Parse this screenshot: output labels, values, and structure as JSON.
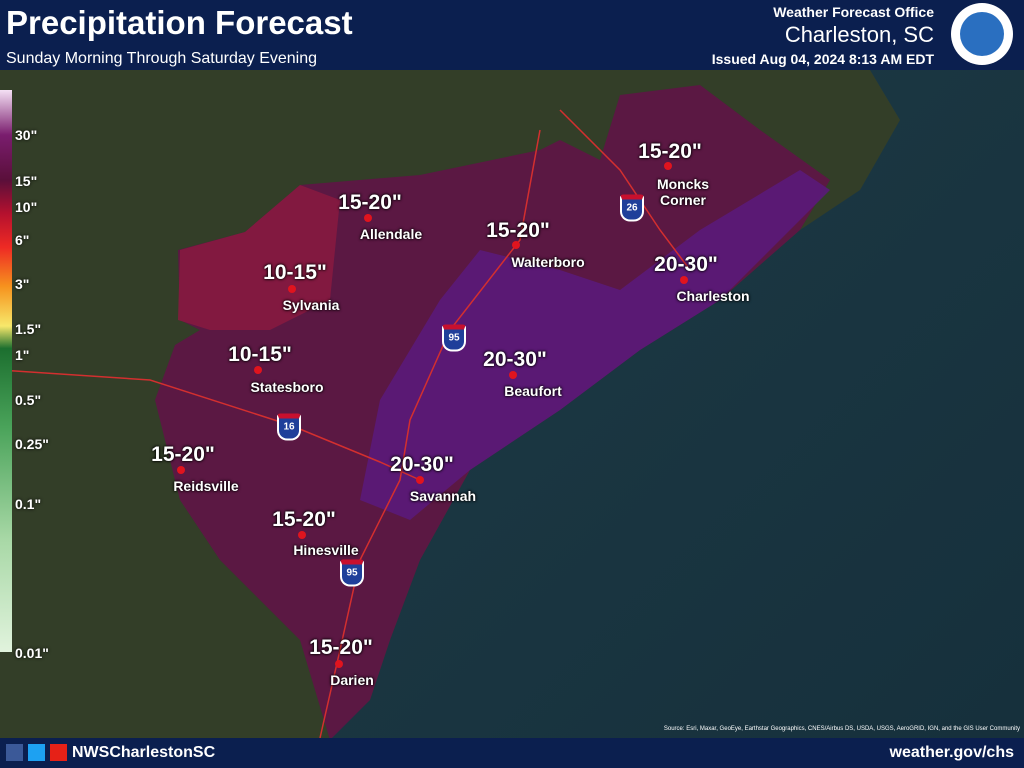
{
  "header": {
    "title": "Precipitation Forecast",
    "subtitle": "Sunday Morning Through Saturday Evening",
    "office": "Weather Forecast Office",
    "location": "Charleston, SC",
    "issued": "Issued Aug 04, 2024 8:13 AM EDT"
  },
  "legend": {
    "labels": [
      "30\"",
      "15\"",
      "10\"",
      "6\"",
      "3\"",
      "1.5\"",
      "1\"",
      "0.5\"",
      "0.25\"",
      "0.1\"",
      "0.01\""
    ]
  },
  "places": [
    {
      "name": "Moncks Corner",
      "amount": "15-20\""
    },
    {
      "name": "Allendale",
      "amount": "15-20\""
    },
    {
      "name": "Walterboro",
      "amount": "15-20\""
    },
    {
      "name": "Charleston",
      "amount": "20-30\""
    },
    {
      "name": "Sylvania",
      "amount": "10-15\""
    },
    {
      "name": "Statesboro",
      "amount": "10-15\""
    },
    {
      "name": "Beaufort",
      "amount": "20-30\""
    },
    {
      "name": "Reidsville",
      "amount": "15-20\""
    },
    {
      "name": "Savannah",
      "amount": "20-30\""
    },
    {
      "name": "Hinesville",
      "amount": "15-20\""
    },
    {
      "name": "Darien",
      "amount": "15-20\""
    }
  ],
  "highways": [
    "26",
    "95",
    "16",
    "95"
  ],
  "source": "Source: Esri, Maxar, GeoEye, Earthstar Geographics, CNES/Airbus DS, USDA, USGS, AeroGRID, IGN, and the GIS User Community",
  "footer": {
    "handle": "NWSCharlestonSC",
    "website": "weather.gov/chs"
  }
}
